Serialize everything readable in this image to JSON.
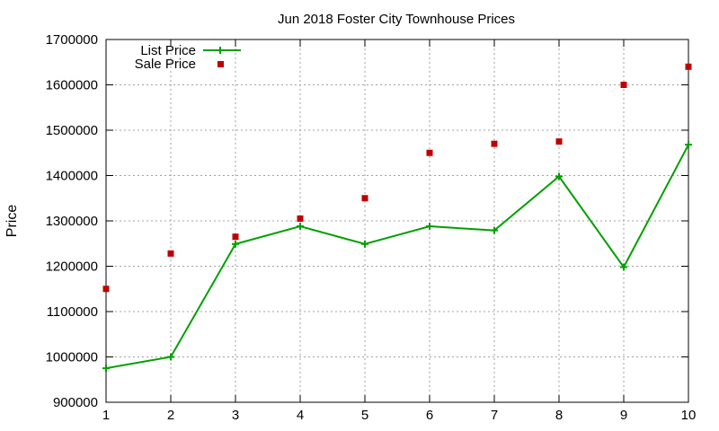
{
  "chart_data": {
    "type": "line",
    "title": "Jun 2018 Foster City Townhouse Prices",
    "xlabel": "",
    "ylabel": "Price",
    "x": [
      1,
      2,
      3,
      4,
      5,
      6,
      7,
      8,
      9,
      10
    ],
    "xlim": [
      1,
      10
    ],
    "ylim": [
      900000,
      1700000
    ],
    "x_ticks": [
      "1",
      "2",
      "3",
      "4",
      "5",
      "6",
      "7",
      "8",
      "9",
      "10"
    ],
    "y_ticks": [
      "900000",
      "1000000",
      "1100000",
      "1200000",
      "1300000",
      "1400000",
      "1500000",
      "1600000",
      "1700000"
    ],
    "grid": true,
    "legend_position": "top-left",
    "series": [
      {
        "name": "List Price",
        "style": "line-with-plus-markers",
        "color": "#00a000",
        "values": [
          975000,
          1000000,
          1249000,
          1288000,
          1249000,
          1288000,
          1279000,
          1398000,
          1198000,
          1468000
        ]
      },
      {
        "name": "Sale Price",
        "style": "square-points",
        "color": "#c00000",
        "values": [
          1150000,
          1228000,
          1265000,
          1305000,
          1350000,
          1450000,
          1470000,
          1475000,
          1600000,
          1640000
        ]
      }
    ]
  }
}
